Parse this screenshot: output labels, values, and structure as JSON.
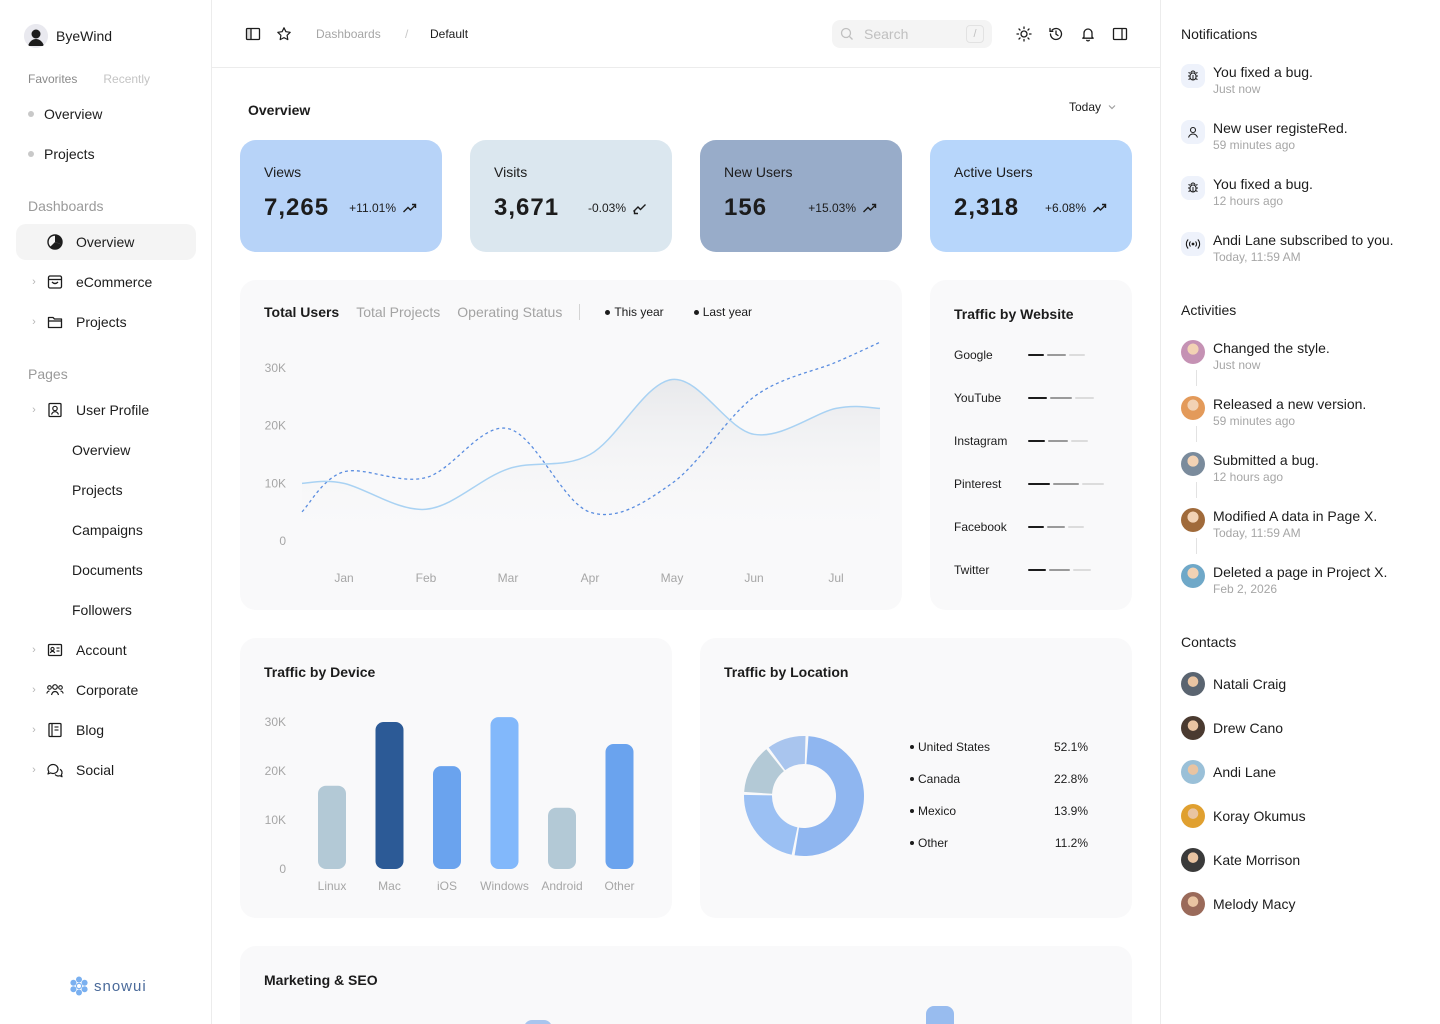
{
  "brand": {
    "name": "ByeWind"
  },
  "favorites": {
    "tabs": [
      "Favorites",
      "Recently"
    ],
    "items": [
      "Overview",
      "Projects"
    ]
  },
  "sidebar": {
    "dashboards_title": "Dashboards",
    "dashboards": [
      {
        "label": "Overview",
        "icon": "pie-chart-icon"
      },
      {
        "label": "eCommerce",
        "icon": "shopping-bag-icon"
      },
      {
        "label": "Projects",
        "icon": "folder-icon"
      }
    ],
    "pages_title": "Pages",
    "user_profile": "User Profile",
    "user_profile_sub": [
      "Overview",
      "Projects",
      "Campaigns",
      "Documents",
      "Followers"
    ],
    "pages": [
      {
        "label": "Account",
        "icon": "id-card-icon"
      },
      {
        "label": "Corporate",
        "icon": "users-icon"
      },
      {
        "label": "Blog",
        "icon": "notebook-icon"
      },
      {
        "label": "Social",
        "icon": "chat-icon"
      }
    ],
    "footer_logo": "snowui"
  },
  "topbar": {
    "breadcrumb": [
      "Dashboards",
      "Default"
    ],
    "breadcrumb_sep": "/",
    "search_placeholder": "Search",
    "search_shortcut": "/"
  },
  "overview": {
    "title": "Overview",
    "range": "Today",
    "stats": [
      {
        "label": "Views",
        "value": "7,265",
        "change": "+11.01%",
        "trend": "up",
        "color": "#b7d3f8"
      },
      {
        "label": "Visits",
        "value": "3,671",
        "change": "-0.03%",
        "trend": "down",
        "color": "#dbe7ef"
      },
      {
        "label": "New Users",
        "value": "156",
        "change": "+15.03%",
        "trend": "up",
        "color": "#98acc9"
      },
      {
        "label": "Active Users",
        "value": "2,318",
        "change": "+6.08%",
        "trend": "up",
        "color": "#b7d6fb"
      }
    ]
  },
  "total_users": {
    "tabs": [
      "Total Users",
      "Total Projects",
      "Operating Status"
    ],
    "legend": [
      "This year",
      "Last year"
    ]
  },
  "traffic_website": {
    "title": "Traffic by Website",
    "sites": [
      {
        "name": "Google",
        "level": 0.35
      },
      {
        "name": "YouTube",
        "level": 0.6
      },
      {
        "name": "Instagram",
        "level": 0.4
      },
      {
        "name": "Pinterest",
        "level": 0.85
      },
      {
        "name": "Facebook",
        "level": 0.3
      },
      {
        "name": "Twitter",
        "level": 0.5
      }
    ]
  },
  "traffic_device": {
    "title": "Traffic by Device"
  },
  "traffic_location": {
    "title": "Traffic by Location",
    "rows": [
      {
        "name": "United States",
        "pct": "52.1%",
        "color": "#8fb6f0"
      },
      {
        "name": "Canada",
        "pct": "22.8%",
        "color": "#9bc0f3"
      },
      {
        "name": "Mexico",
        "pct": "13.9%",
        "color": "#b3c9d6"
      },
      {
        "name": "Other",
        "pct": "11.2%",
        "color": "#a9c5ee"
      }
    ]
  },
  "marketing": {
    "title": "Marketing & SEO"
  },
  "chart_data": [
    {
      "type": "line",
      "x": [
        "Jan",
        "Feb",
        "Mar",
        "Apr",
        "May",
        "Jun",
        "Jul"
      ],
      "ylim": [
        0,
        30000
      ],
      "yticks": [
        "0",
        "10K",
        "20K",
        "30K"
      ],
      "series": [
        {
          "name": "This year",
          "style": "dashed",
          "color": "#5a8de0",
          "values": [
            12000,
            11000,
            19500,
            5000,
            10000,
            25000,
            31000
          ]
        },
        {
          "name": "Last year",
          "style": "solid",
          "color": "#a9d2f3",
          "values": [
            10000,
            5500,
            12500,
            15000,
            28000,
            18500,
            23000
          ]
        }
      ],
      "grid": false
    },
    {
      "type": "bar",
      "categories": [
        "Linux",
        "Mac",
        "iOS",
        "Windows",
        "Android",
        "Other"
      ],
      "values": [
        17000,
        30000,
        21000,
        31000,
        12500,
        25500
      ],
      "colors": [
        "#b3c9d6",
        "#2c5a96",
        "#6aa3ee",
        "#82b8fb",
        "#b3c9d6",
        "#6aa3ee"
      ],
      "ylim": [
        0,
        30000
      ],
      "yticks": [
        "0",
        "10K",
        "20K",
        "30K"
      ]
    },
    {
      "type": "pie",
      "categories": [
        "United States",
        "Canada",
        "Mexico",
        "Other"
      ],
      "values": [
        52.1,
        22.8,
        13.9,
        11.2
      ],
      "colors": [
        "#8fb6f0",
        "#9bc0f3",
        "#b3c9d6",
        "#a9c5ee"
      ]
    }
  ],
  "notifications": {
    "title": "Notifications",
    "items": [
      {
        "text": "You fixed a bug.",
        "time": "Just now",
        "icon": "bug-icon"
      },
      {
        "text": "New user registeRed.",
        "time": "59 minutes ago",
        "icon": "user-icon"
      },
      {
        "text": "You fixed a bug.",
        "time": "12 hours ago",
        "icon": "bug-icon"
      },
      {
        "text": "Andi Lane subscribed to you.",
        "time": "Today, 11:59 AM",
        "icon": "broadcast-icon"
      }
    ]
  },
  "activities": {
    "title": "Activities",
    "items": [
      {
        "text": "Changed the style.",
        "time": "Just now",
        "color": "#c592b4"
      },
      {
        "text": "Released a new version.",
        "time": "59 minutes ago",
        "color": "#e39a5a"
      },
      {
        "text": "Submitted a bug.",
        "time": "12 hours ago",
        "color": "#7a8b9c"
      },
      {
        "text": "Modified A data in Page X.",
        "time": "Today, 11:59 AM",
        "color": "#a06a3a"
      },
      {
        "text": "Deleted a page in Project X.",
        "time": "Feb 2, 2026",
        "color": "#6fa8c8"
      }
    ]
  },
  "contacts": {
    "title": "Contacts",
    "items": [
      {
        "name": "Natali Craig",
        "color": "#5a6470"
      },
      {
        "name": "Drew Cano",
        "color": "#4a3a30"
      },
      {
        "name": "Andi Lane",
        "color": "#9ac0d8"
      },
      {
        "name": "Koray Okumus",
        "color": "#e0a030"
      },
      {
        "name": "Kate Morrison",
        "color": "#3a3a3a"
      },
      {
        "name": "Melody Macy",
        "color": "#9a6a5a"
      }
    ]
  }
}
